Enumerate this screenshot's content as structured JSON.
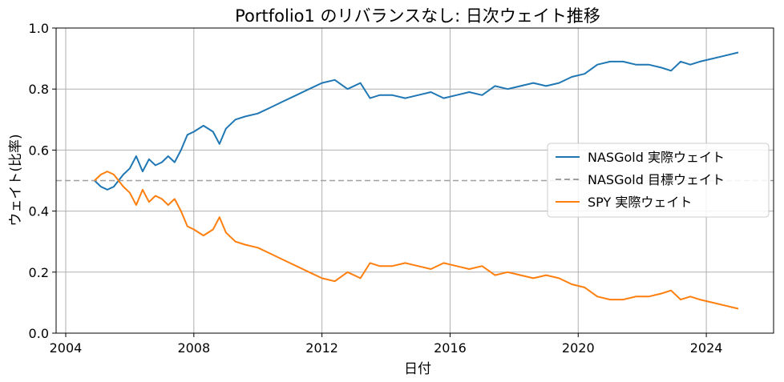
{
  "chart_data": {
    "type": "line",
    "title": "Portfolio1 のリバランスなし: 日次ウェイト推移",
    "xlabel": "日付",
    "ylabel": "ウェイト(比率)",
    "xlim": [
      2003.7,
      2026.1
    ],
    "ylim": [
      0.0,
      1.0
    ],
    "x_ticks": [
      2004,
      2008,
      2012,
      2016,
      2020,
      2024
    ],
    "x_tick_labels": [
      "2004",
      "2008",
      "2012",
      "2016",
      "2020",
      "2024"
    ],
    "y_ticks": [
      0.0,
      0.2,
      0.4,
      0.6,
      0.8,
      1.0
    ],
    "y_tick_labels": [
      "0.0",
      "0.2",
      "0.4",
      "0.6",
      "0.8",
      "1.0"
    ],
    "grid": true,
    "legend_position": "center-right",
    "series": [
      {
        "name": "NASGold 実際ウェイト",
        "color": "#1f77b4",
        "style": "solid",
        "x": [
          2004.9,
          2005.1,
          2005.3,
          2005.5,
          2005.8,
          2006.0,
          2006.2,
          2006.4,
          2006.6,
          2006.8,
          2007.0,
          2007.2,
          2007.4,
          2007.6,
          2007.8,
          2008.0,
          2008.3,
          2008.6,
          2008.8,
          2009.0,
          2009.3,
          2009.6,
          2010.0,
          2010.4,
          2010.8,
          2011.2,
          2011.6,
          2012.0,
          2012.4,
          2012.8,
          2013.2,
          2013.5,
          2013.8,
          2014.2,
          2014.6,
          2015.0,
          2015.4,
          2015.8,
          2016.2,
          2016.6,
          2017.0,
          2017.4,
          2017.8,
          2018.2,
          2018.6,
          2019.0,
          2019.4,
          2019.8,
          2020.2,
          2020.6,
          2021.0,
          2021.4,
          2021.8,
          2022.2,
          2022.6,
          2022.9,
          2023.2,
          2023.5,
          2023.8,
          2024.2,
          2024.6,
          2025.0
        ],
        "values": [
          0.5,
          0.48,
          0.47,
          0.48,
          0.52,
          0.54,
          0.58,
          0.53,
          0.57,
          0.55,
          0.56,
          0.58,
          0.56,
          0.6,
          0.65,
          0.66,
          0.68,
          0.66,
          0.62,
          0.67,
          0.7,
          0.71,
          0.72,
          0.74,
          0.76,
          0.78,
          0.8,
          0.82,
          0.83,
          0.8,
          0.82,
          0.77,
          0.78,
          0.78,
          0.77,
          0.78,
          0.79,
          0.77,
          0.78,
          0.79,
          0.78,
          0.81,
          0.8,
          0.81,
          0.82,
          0.81,
          0.82,
          0.84,
          0.85,
          0.88,
          0.89,
          0.89,
          0.88,
          0.88,
          0.87,
          0.86,
          0.89,
          0.88,
          0.89,
          0.9,
          0.91,
          0.92
        ]
      },
      {
        "name": "NASGold 目標ウェイト",
        "color": "#a0a0a0",
        "style": "dashed",
        "x": [
          2003.7,
          2026.1
        ],
        "values": [
          0.5,
          0.5
        ]
      },
      {
        "name": "SPY 実際ウェイト",
        "color": "#ff7f0e",
        "style": "solid",
        "x": [
          2004.9,
          2005.1,
          2005.3,
          2005.5,
          2005.8,
          2006.0,
          2006.2,
          2006.4,
          2006.6,
          2006.8,
          2007.0,
          2007.2,
          2007.4,
          2007.6,
          2007.8,
          2008.0,
          2008.3,
          2008.6,
          2008.8,
          2009.0,
          2009.3,
          2009.6,
          2010.0,
          2010.4,
          2010.8,
          2011.2,
          2011.6,
          2012.0,
          2012.4,
          2012.8,
          2013.2,
          2013.5,
          2013.8,
          2014.2,
          2014.6,
          2015.0,
          2015.4,
          2015.8,
          2016.2,
          2016.6,
          2017.0,
          2017.4,
          2017.8,
          2018.2,
          2018.6,
          2019.0,
          2019.4,
          2019.8,
          2020.2,
          2020.6,
          2021.0,
          2021.4,
          2021.8,
          2022.2,
          2022.6,
          2022.9,
          2023.2,
          2023.5,
          2023.8,
          2024.2,
          2024.6,
          2025.0
        ],
        "values": [
          0.5,
          0.52,
          0.53,
          0.52,
          0.48,
          0.46,
          0.42,
          0.47,
          0.43,
          0.45,
          0.44,
          0.42,
          0.44,
          0.4,
          0.35,
          0.34,
          0.32,
          0.34,
          0.38,
          0.33,
          0.3,
          0.29,
          0.28,
          0.26,
          0.24,
          0.22,
          0.2,
          0.18,
          0.17,
          0.2,
          0.18,
          0.23,
          0.22,
          0.22,
          0.23,
          0.22,
          0.21,
          0.23,
          0.22,
          0.21,
          0.22,
          0.19,
          0.2,
          0.19,
          0.18,
          0.19,
          0.18,
          0.16,
          0.15,
          0.12,
          0.11,
          0.11,
          0.12,
          0.12,
          0.13,
          0.14,
          0.11,
          0.12,
          0.11,
          0.1,
          0.09,
          0.08
        ]
      }
    ]
  }
}
